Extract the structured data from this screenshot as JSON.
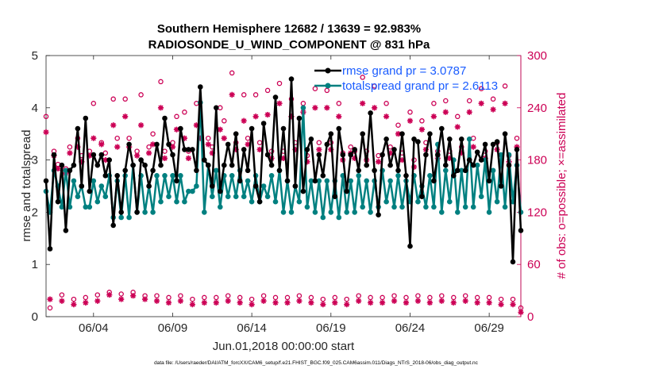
{
  "chart_data": {
    "type": "line",
    "title": "Southern Hemisphere 12682 / 13639 = 92.983%",
    "subtitle": "RADIOSONDE_U_WIND_COMPONENT @ 831 hPa",
    "xlabel": "Jun.01,2018 00:00:00 start",
    "ylabel": "rmse and totalspread",
    "ylabel_right": "# of obs: o=possible; ×=assimilated",
    "xlim": [
      1.0,
      31.0
    ],
    "ylim": [
      0,
      5
    ],
    "ylim_right": [
      0,
      300
    ],
    "xticks": [
      {
        "x": 4,
        "label": "06/04"
      },
      {
        "x": 9,
        "label": "06/09"
      },
      {
        "x": 14,
        "label": "06/14"
      },
      {
        "x": 19,
        "label": "06/19"
      },
      {
        "x": 24,
        "label": "06/24"
      },
      {
        "x": 29,
        "label": "06/29"
      }
    ],
    "yticks": [
      0,
      1,
      2,
      3,
      4,
      5
    ],
    "yticks_right": [
      0,
      60,
      120,
      180,
      240,
      300
    ],
    "grid": false,
    "legend_position": "top-right",
    "colors": {
      "rmse": "#000000",
      "totalspread": "#008080",
      "obs": "#cc0055",
      "axis": "#262626",
      "legend_text": "#1a5cff"
    },
    "x": [
      1.0,
      1.25,
      1.5,
      1.75,
      2.0,
      2.25,
      2.5,
      2.75,
      3.0,
      3.25,
      3.5,
      3.75,
      4.0,
      4.25,
      4.5,
      4.75,
      5.0,
      5.25,
      5.5,
      5.75,
      6.0,
      6.25,
      6.5,
      6.75,
      7.0,
      7.25,
      7.5,
      7.75,
      8.0,
      8.25,
      8.5,
      8.75,
      9.0,
      9.25,
      9.5,
      9.75,
      10.0,
      10.25,
      10.5,
      10.75,
      11.0,
      11.25,
      11.5,
      11.75,
      12.0,
      12.25,
      12.5,
      12.75,
      13.0,
      13.25,
      13.5,
      13.75,
      14.0,
      14.25,
      14.5,
      14.75,
      15.0,
      15.25,
      15.5,
      15.75,
      16.0,
      16.25,
      16.5,
      16.75,
      17.0,
      17.25,
      17.5,
      17.75,
      18.0,
      18.25,
      18.5,
      18.75,
      19.0,
      19.25,
      19.5,
      19.75,
      20.0,
      20.25,
      20.5,
      20.75,
      21.0,
      21.25,
      21.5,
      21.75,
      22.0,
      22.25,
      22.5,
      22.75,
      23.0,
      23.25,
      23.5,
      23.75,
      24.0,
      24.25,
      24.5,
      24.75,
      25.0,
      25.25,
      25.5,
      25.75,
      26.0,
      26.25,
      26.5,
      26.75,
      27.0,
      27.25,
      27.5,
      27.75,
      28.0,
      28.25,
      28.5,
      28.75,
      29.0,
      29.25,
      29.5,
      29.75,
      30.0,
      30.25,
      30.5,
      30.75,
      31.0
    ],
    "series": [
      {
        "name": "rmse grand pr = 3.0787",
        "color": "#000000",
        "marker": "circle",
        "values": [
          2.6,
          1.3,
          3.1,
          2.2,
          2.9,
          1.65,
          2.8,
          2.9,
          3.6,
          2.5,
          3.8,
          2.4,
          3.1,
          2.9,
          3.1,
          2.7,
          3.0,
          1.75,
          2.7,
          2.0,
          2.8,
          3.3,
          2.9,
          2.0,
          3.0,
          2.9,
          2.5,
          2.8,
          3.3,
          2.9,
          3.8,
          3.3,
          3.1,
          2.6,
          3.6,
          3.2,
          3.2,
          3.2,
          2.8,
          4.4,
          3.0,
          2.9,
          2.5,
          4.0,
          2.4,
          2.9,
          3.3,
          2.9,
          3.5,
          2.6,
          3.2,
          2.8,
          3.6,
          2.5,
          2.2,
          3.7,
          3.1,
          2.9,
          4.2,
          2.8,
          3.6,
          2.6,
          4.55,
          2.5,
          3.8,
          2.4,
          3.2,
          3.4,
          2.6,
          3.1,
          2.7,
          3.3,
          3.5,
          2.3,
          3.6,
          3.1,
          2.4,
          3.1,
          3.2,
          2.8,
          3.5,
          2.9,
          3.9,
          2.8,
          1.95,
          3.1,
          3.4,
          2.9,
          3.2,
          2.8,
          3.5,
          2.7,
          1.35,
          3.4,
          3.35,
          2.3,
          3.1,
          3.5,
          2.6,
          3.1,
          3.6,
          2.9,
          3.4,
          2.7,
          2.8,
          3.4,
          2.8,
          3.0,
          2.9,
          3.15,
          3.0,
          3.3,
          2.6,
          3.3,
          3.35,
          2.5,
          3.5,
          2.9,
          1.05,
          3.2,
          1.65
        ]
      },
      {
        "name": "totalspread grand pr = 2.6113",
        "color": "#008080",
        "marker": "circle",
        "values": [
          2.4,
          2.0,
          2.8,
          2.5,
          2.1,
          2.8,
          2.1,
          2.6,
          2.3,
          2.5,
          2.1,
          2.1,
          2.6,
          2.2,
          2.5,
          2.3,
          2.7,
          1.9,
          2.6,
          1.9,
          2.7,
          1.9,
          2.9,
          2.0,
          2.7,
          2.0,
          2.5,
          2.0,
          2.7,
          2.2,
          2.7,
          2.3,
          2.7,
          2.2,
          2.7,
          2.2,
          2.4,
          2.4,
          2.5,
          4.1,
          2.0,
          2.9,
          2.3,
          2.8,
          2.1,
          2.7,
          2.3,
          2.7,
          2.3,
          2.8,
          2.3,
          2.6,
          2.2,
          2.7,
          2.2,
          2.5,
          2.3,
          2.7,
          2.2,
          2.8,
          2.0,
          2.6,
          2.0,
          2.5,
          2.2,
          4.0,
          2.1,
          2.6,
          2.0,
          2.6,
          1.9,
          2.6,
          2.0,
          2.6,
          1.9,
          2.7,
          2.0,
          2.6,
          2.0,
          2.7,
          2.1,
          2.6,
          2.0,
          2.6,
          2.1,
          2.8,
          2.2,
          2.6,
          2.1,
          2.7,
          2.1,
          2.6,
          2.2,
          2.7,
          2.2,
          2.5,
          2.1,
          2.7,
          2.1,
          3.3,
          2.0,
          2.8,
          2.2,
          3.0,
          2.0,
          2.8,
          2.1,
          3.4,
          2.1,
          2.9,
          2.3,
          3.0,
          2.0,
          2.8,
          2.2,
          3.1,
          2.1,
          3.1,
          2.2,
          2.9,
          2.0
        ]
      },
      {
        "name": "obs possible",
        "color": "#cc0055",
        "marker": "o",
        "axis": "right",
        "values": [
          230,
          10,
          190,
          175,
          25,
          170,
          195,
          20,
          205,
          185,
          22,
          190,
          245,
          25,
          200,
          188,
          28,
          250,
          205,
          26,
          250,
          205,
          28,
          190,
          255,
          24,
          195,
          210,
          24,
          270,
          190,
          22,
          200,
          230,
          24,
          235,
          190,
          20,
          245,
          225,
          22,
          205,
          195,
          22,
          240,
          225,
          24,
          280,
          200,
          22,
          255,
          205,
          20,
          255,
          200,
          24,
          260,
          190,
          22,
          268,
          190,
          22,
          250,
          200,
          24,
          245,
          185,
          22,
          262,
          200,
          20,
          260,
          200,
          22,
          245,
          188,
          20,
          195,
          190,
          24,
          275,
          190,
          22,
          265,
          185,
          22,
          245,
          195,
          24,
          220,
          188,
          22,
          235,
          180,
          24,
          225,
          200,
          22,
          245,
          190,
          24,
          248,
          190,
          22,
          230,
          195,
          24,
          248,
          205,
          22,
          262,
          190,
          22,
          250,
          200,
          20,
          265,
          185,
          20,
          205,
          10
        ]
      },
      {
        "name": "obs assimilated",
        "color": "#cc0055",
        "marker": "star",
        "axis": "right",
        "values": [
          212,
          20,
          185,
          170,
          18,
          165,
          188,
          14,
          195,
          178,
          16,
          185,
          205,
          18,
          198,
          180,
          25,
          220,
          195,
          20,
          230,
          195,
          24,
          185,
          220,
          20,
          188,
          198,
          18,
          240,
          182,
          16,
          195,
          215,
          18,
          205,
          182,
          14,
          220,
          205,
          16,
          198,
          188,
          16,
          215,
          205,
          18,
          255,
          192,
          16,
          225,
          198,
          14,
          230,
          192,
          18,
          232,
          182,
          16,
          245,
          182,
          16,
          230,
          192,
          18,
          235,
          178,
          16,
          240,
          192,
          14,
          240,
          192,
          16,
          230,
          180,
          14,
          188,
          182,
          18,
          245,
          180,
          16,
          240,
          178,
          16,
          230,
          188,
          18,
          210,
          180,
          16,
          225,
          172,
          18,
          215,
          192,
          16,
          230,
          182,
          18,
          235,
          182,
          16,
          218,
          188,
          18,
          235,
          195,
          16,
          245,
          182,
          16,
          238,
          192,
          14,
          245,
          178,
          14,
          195,
          5
        ]
      }
    ],
    "legend": [
      {
        "label": "rmse grand pr = 3.0787",
        "color": "#000000"
      },
      {
        "label": "totalspread grand pr = 2.6113",
        "color": "#008080"
      }
    ],
    "footnote": "data file: /Users/raeder/DAI/ATM_forcXX/CAM6_setup/f.e21.FHIST_BGC.f09_025.CAM6assim.011/Diags_NTrS_2018-06/obs_diag_output.nc"
  }
}
